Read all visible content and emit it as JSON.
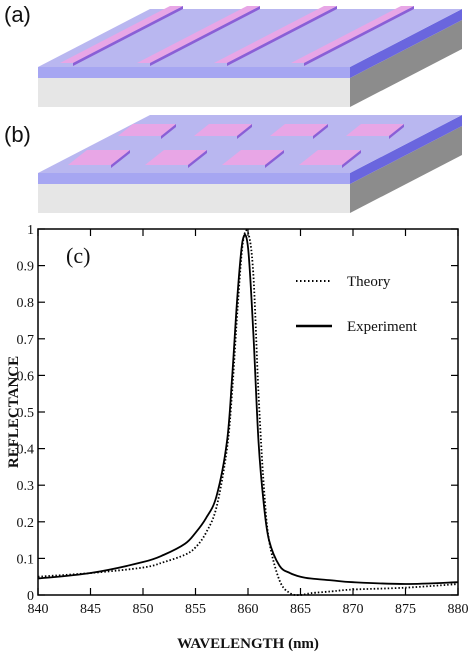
{
  "figure": {
    "panel_a_label": "(a)",
    "panel_b_label": "(b)",
    "panel_c_label": "(c)",
    "panel_a_description": "3D slab with long parallel grating stripes on top",
    "panel_b_description": "3D slab with a 2D array of rectangular pads on top",
    "colors": {
      "stripe_top": "#e8a6e6",
      "stripe_side": "#8a5fd6",
      "film_top": "#b9b7f0",
      "film_front": "#a6a6f2",
      "film_side": "#6a66de",
      "substrate_front": "#e6e6e6",
      "substrate_side": "#8c8c8c"
    }
  },
  "chart_data": {
    "type": "line",
    "title": "",
    "xlabel": "WAVELENGTH (nm)",
    "ylabel": "REFLECTANCE",
    "xlim": [
      840,
      880
    ],
    "ylim": [
      0,
      1
    ],
    "xticks": [
      "840",
      "845",
      "850",
      "855",
      "860",
      "865",
      "870",
      "875",
      "880"
    ],
    "yticks": [
      "0",
      "0.1",
      "0.2",
      "0.3",
      "0.4",
      "0.5",
      "0.6",
      "0.7",
      "0.8",
      "0.9",
      "1"
    ],
    "legend_placement": "top-right",
    "grid": false,
    "series": [
      {
        "name": "Theory",
        "style": "dotted",
        "x": [
          840,
          845,
          850,
          852,
          854,
          855,
          856,
          857,
          858,
          858.5,
          859,
          859.5,
          860,
          860.5,
          861,
          861.5,
          862,
          863,
          864,
          865,
          866,
          868,
          870,
          875,
          880
        ],
        "y": [
          0.05,
          0.06,
          0.075,
          0.09,
          0.11,
          0.13,
          0.17,
          0.24,
          0.4,
          0.56,
          0.78,
          0.96,
          0.99,
          0.88,
          0.55,
          0.3,
          0.15,
          0.04,
          0.005,
          0.0,
          0.005,
          0.01,
          0.015,
          0.02,
          0.03
        ]
      },
      {
        "name": "Experiment",
        "style": "solid",
        "x": [
          840,
          845,
          850,
          852,
          854,
          855,
          856,
          857,
          858,
          858.5,
          859,
          859.5,
          860,
          860.5,
          861,
          861.5,
          862,
          863,
          864,
          865,
          866,
          868,
          870,
          875,
          880
        ],
        "y": [
          0.045,
          0.06,
          0.09,
          0.11,
          0.14,
          0.17,
          0.21,
          0.27,
          0.42,
          0.6,
          0.82,
          0.97,
          0.95,
          0.72,
          0.42,
          0.25,
          0.15,
          0.08,
          0.06,
          0.05,
          0.045,
          0.04,
          0.035,
          0.03,
          0.035
        ]
      }
    ]
  }
}
